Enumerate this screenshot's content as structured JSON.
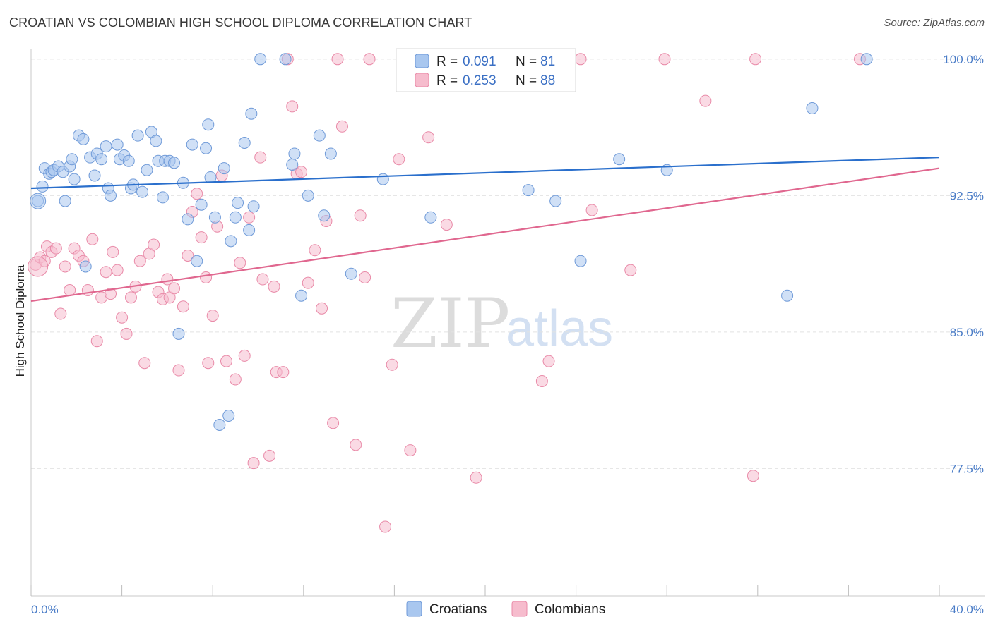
{
  "title": "CROATIAN VS COLOMBIAN HIGH SCHOOL DIPLOMA CORRELATION CHART",
  "source": "Source: ZipAtlas.com",
  "watermark": {
    "a": "ZIP",
    "b": "atlas"
  },
  "legend": {
    "r_label": "R =",
    "n_label": "N =",
    "rows": [
      {
        "r": "0.091",
        "n": "81"
      },
      {
        "r": "0.253",
        "n": "88"
      }
    ]
  },
  "colors": {
    "blue_fill": "#a9c7ef",
    "blue_stroke": "#6f9ad8",
    "blue_line": "#2a6fcc",
    "pink_fill": "#f6bccd",
    "pink_stroke": "#e98aa8",
    "pink_line": "#e0678f"
  },
  "chart_data": {
    "type": "scatter",
    "title": "CROATIAN VS COLOMBIAN HIGH SCHOOL DIPLOMA CORRELATION CHART",
    "xlabel": "",
    "ylabel": "High School Diploma",
    "xlim": [
      0,
      40
    ],
    "ylim": [
      70.5,
      101
    ],
    "x_tick_labels": [
      "0.0%",
      "40.0%"
    ],
    "y_ticks": [
      77.5,
      85.0,
      92.5,
      100.0
    ],
    "y_tick_labels": [
      "77.5%",
      "85.0%",
      "92.5%",
      "100.0%"
    ],
    "grid": true,
    "legend_position": "top-center",
    "series": [
      {
        "name": "Croatians",
        "trend": {
          "x": [
            0,
            40
          ],
          "y": [
            92.9,
            94.6
          ]
        },
        "points": [
          [
            0.3,
            92.2
          ],
          [
            0.5,
            93.0
          ],
          [
            0.6,
            94.0
          ],
          [
            0.8,
            93.7
          ],
          [
            0.9,
            93.8
          ],
          [
            1.0,
            93.9
          ],
          [
            1.2,
            94.1
          ],
          [
            1.4,
            93.8
          ],
          [
            1.5,
            92.2
          ],
          [
            1.7,
            94.1
          ],
          [
            1.8,
            94.5
          ],
          [
            1.9,
            93.4
          ],
          [
            2.1,
            95.8
          ],
          [
            2.3,
            95.6
          ],
          [
            2.4,
            88.6
          ],
          [
            2.6,
            94.6
          ],
          [
            2.8,
            93.6
          ],
          [
            2.9,
            94.8
          ],
          [
            3.1,
            94.5
          ],
          [
            3.3,
            95.2
          ],
          [
            3.4,
            92.9
          ],
          [
            3.5,
            92.5
          ],
          [
            3.8,
            95.3
          ],
          [
            3.9,
            94.5
          ],
          [
            4.1,
            94.7
          ],
          [
            4.3,
            94.4
          ],
          [
            4.4,
            92.9
          ],
          [
            4.5,
            93.1
          ],
          [
            4.7,
            95.8
          ],
          [
            4.9,
            92.7
          ],
          [
            5.1,
            93.9
          ],
          [
            5.3,
            96.0
          ],
          [
            5.5,
            95.5
          ],
          [
            5.6,
            94.4
          ],
          [
            5.8,
            92.4
          ],
          [
            5.9,
            94.4
          ],
          [
            6.1,
            94.4
          ],
          [
            6.3,
            94.3
          ],
          [
            6.5,
            84.9
          ],
          [
            6.7,
            93.2
          ],
          [
            6.9,
            91.2
          ],
          [
            7.1,
            95.3
          ],
          [
            7.3,
            88.9
          ],
          [
            7.5,
            92.0
          ],
          [
            7.7,
            95.1
          ],
          [
            7.8,
            96.4
          ],
          [
            7.9,
            93.5
          ],
          [
            8.1,
            91.3
          ],
          [
            8.3,
            79.9
          ],
          [
            8.5,
            94.0
          ],
          [
            8.7,
            80.4
          ],
          [
            8.8,
            90.0
          ],
          [
            9.0,
            91.3
          ],
          [
            9.1,
            92.1
          ],
          [
            9.4,
            95.4
          ],
          [
            9.6,
            90.6
          ],
          [
            9.7,
            97.0
          ],
          [
            9.8,
            91.9
          ],
          [
            10.1,
            100.0
          ],
          [
            11.2,
            100.0
          ],
          [
            11.5,
            94.2
          ],
          [
            11.6,
            94.8
          ],
          [
            11.9,
            87.0
          ],
          [
            12.2,
            92.5
          ],
          [
            12.7,
            95.8
          ],
          [
            12.9,
            91.4
          ],
          [
            13.2,
            94.8
          ],
          [
            14.1,
            88.2
          ],
          [
            15.5,
            93.4
          ],
          [
            16.8,
            99.3
          ],
          [
            17.6,
            91.3
          ],
          [
            17.9,
            100.0
          ],
          [
            20.2,
            100.0
          ],
          [
            21.9,
            92.8
          ],
          [
            23.1,
            92.2
          ],
          [
            24.2,
            88.9
          ],
          [
            25.9,
            94.5
          ],
          [
            28.0,
            93.9
          ],
          [
            33.3,
            87.0
          ],
          [
            34.4,
            97.3
          ],
          [
            36.8,
            100.0
          ]
        ]
      },
      {
        "name": "Colombians",
        "trend": {
          "x": [
            0,
            40
          ],
          "y": [
            86.7,
            94.0
          ]
        },
        "points": [
          [
            0.2,
            88.7
          ],
          [
            0.4,
            89.1
          ],
          [
            0.6,
            88.9
          ],
          [
            0.7,
            89.7
          ],
          [
            0.9,
            89.4
          ],
          [
            1.1,
            89.6
          ],
          [
            1.3,
            86.0
          ],
          [
            1.5,
            88.6
          ],
          [
            1.7,
            87.3
          ],
          [
            1.9,
            89.6
          ],
          [
            2.1,
            89.2
          ],
          [
            2.3,
            88.9
          ],
          [
            2.5,
            87.3
          ],
          [
            2.7,
            90.1
          ],
          [
            2.9,
            84.5
          ],
          [
            3.1,
            86.9
          ],
          [
            3.3,
            88.3
          ],
          [
            3.5,
            87.1
          ],
          [
            3.6,
            89.4
          ],
          [
            3.8,
            88.4
          ],
          [
            4.0,
            85.8
          ],
          [
            4.2,
            84.9
          ],
          [
            4.4,
            86.9
          ],
          [
            4.6,
            87.5
          ],
          [
            4.8,
            88.9
          ],
          [
            5.0,
            83.3
          ],
          [
            5.2,
            89.3
          ],
          [
            5.4,
            89.8
          ],
          [
            5.6,
            87.2
          ],
          [
            5.8,
            86.8
          ],
          [
            6.0,
            87.9
          ],
          [
            6.1,
            86.9
          ],
          [
            6.3,
            87.4
          ],
          [
            6.5,
            82.9
          ],
          [
            6.7,
            86.4
          ],
          [
            6.9,
            89.2
          ],
          [
            7.1,
            91.6
          ],
          [
            7.3,
            92.6
          ],
          [
            7.5,
            90.2
          ],
          [
            7.7,
            88.0
          ],
          [
            7.8,
            83.3
          ],
          [
            8.0,
            85.9
          ],
          [
            8.2,
            90.8
          ],
          [
            8.4,
            93.6
          ],
          [
            8.6,
            83.4
          ],
          [
            9.0,
            82.4
          ],
          [
            9.2,
            88.8
          ],
          [
            9.4,
            83.7
          ],
          [
            9.6,
            91.3
          ],
          [
            9.8,
            77.8
          ],
          [
            10.1,
            94.6
          ],
          [
            10.2,
            87.9
          ],
          [
            10.5,
            78.2
          ],
          [
            10.7,
            87.5
          ],
          [
            10.8,
            82.8
          ],
          [
            11.1,
            82.8
          ],
          [
            11.3,
            100.0
          ],
          [
            11.5,
            97.4
          ],
          [
            11.7,
            93.7
          ],
          [
            11.9,
            93.8
          ],
          [
            12.2,
            87.7
          ],
          [
            12.5,
            89.5
          ],
          [
            12.8,
            86.3
          ],
          [
            13.0,
            91.1
          ],
          [
            13.3,
            80.0
          ],
          [
            13.5,
            100.0
          ],
          [
            13.7,
            96.3
          ],
          [
            14.3,
            78.8
          ],
          [
            14.5,
            91.4
          ],
          [
            14.7,
            88.0
          ],
          [
            14.9,
            100.0
          ],
          [
            15.6,
            74.3
          ],
          [
            15.9,
            83.2
          ],
          [
            16.2,
            94.5
          ],
          [
            16.7,
            78.5
          ],
          [
            17.5,
            95.7
          ],
          [
            18.3,
            90.9
          ],
          [
            19.6,
            77.0
          ],
          [
            22.5,
            82.3
          ],
          [
            22.8,
            83.4
          ],
          [
            24.2,
            100.0
          ],
          [
            24.7,
            91.7
          ],
          [
            26.4,
            88.4
          ],
          [
            27.9,
            100.0
          ],
          [
            29.7,
            97.7
          ],
          [
            31.9,
            100.0
          ],
          [
            31.8,
            77.1
          ],
          [
            36.5,
            100.0
          ]
        ]
      }
    ]
  },
  "bottom_legend": [
    "Croatians",
    "Colombians"
  ]
}
